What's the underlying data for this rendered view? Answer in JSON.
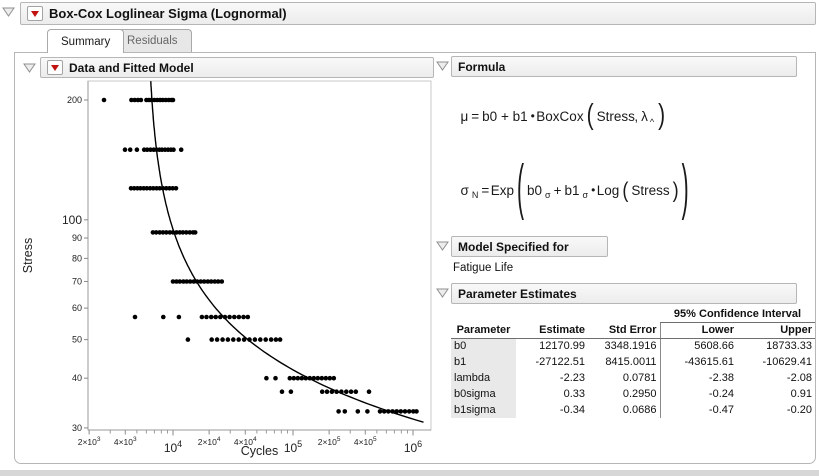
{
  "colors": {
    "accent_red": "#c2120f",
    "header_border": "#b6b6b6",
    "plot_frame": "#c8c8c8",
    "axis_line": "#9a9a9a",
    "point_color": "#000000",
    "bottom_strip": "#d7d7d7"
  },
  "title": "Box-Cox Loglinear Sigma (Lognormal)",
  "tabs": [
    {
      "label": "Summary",
      "active": true
    },
    {
      "label": "Residuals",
      "active": false
    }
  ],
  "plot_section": {
    "title": "Data and Fitted Model"
  },
  "formula_section": {
    "title": "Formula",
    "mu": {
      "lhs": "μ",
      "eq": "=",
      "terms": "b0 + b1",
      "dot": "•",
      "fn": "BoxCox",
      "lp": "(",
      "arg": "Stress",
      "comma": ",",
      "lambda": "λ",
      "hat": "^",
      "rp": ")"
    },
    "sigma": {
      "lhs": "σ",
      "lhs_sub": "N",
      "eq": "=",
      "fn": "Exp",
      "lp_outer": "(",
      "t1": "b0",
      "t1_sub": "σ",
      "plus": "+",
      "t2": "b1",
      "t2_sub": "σ",
      "dot": "•",
      "fn2": "Log",
      "lp_inner": "(",
      "arg": "Stress",
      "rp_inner": ")",
      "rp_outer": ")"
    }
  },
  "model_section": {
    "title": "Model Specified for",
    "value": "Fatigue Life"
  },
  "estimates_section": {
    "title": "Parameter Estimates",
    "ci_header": "95% Confidence Interval",
    "columns": [
      "Parameter",
      "Estimate",
      "Std Error",
      "Lower",
      "Upper"
    ],
    "rows": [
      [
        "b0",
        "12170.99",
        "3348.1916",
        "5608.66",
        "18733.33"
      ],
      [
        "b1",
        "-27122.51",
        "8415.0011",
        "-43615.61",
        "-10629.41"
      ],
      [
        "lambda",
        "-2.23",
        "0.0781",
        "-2.38",
        "-2.08"
      ],
      [
        "b0sigma",
        "0.33",
        "0.2950",
        "-0.24",
        "0.91"
      ],
      [
        "b1sigma",
        "-0.34",
        "0.0686",
        "-0.47",
        "-0.20"
      ]
    ]
  },
  "chart_data": {
    "type": "scatter",
    "title": "Data and Fitted Model",
    "xlabel": "Cycles",
    "ylabel": "Stress",
    "x_scale": "log",
    "y_scale": "log",
    "x_range": [
      1960,
      1410000
    ],
    "y_range": [
      29.6,
      224
    ],
    "grid": false,
    "x_ticks_labeled": [
      2000,
      4000,
      10000,
      20000,
      40000,
      100000,
      200000,
      400000,
      1000000
    ],
    "x_minor_mantissas": [
      3,
      5,
      6,
      7,
      8,
      9
    ],
    "y_ticks_labeled": [
      200,
      100,
      90,
      80,
      70,
      60,
      50,
      40,
      30
    ],
    "series": [
      {
        "stress": 200,
        "cycles": [
          2660,
          4500,
          4800,
          5100,
          5400,
          6000,
          6300,
          6600,
          7000,
          7400,
          7800,
          8200,
          8700,
          9200,
          9700,
          10000
        ]
      },
      {
        "stress": 150,
        "cycles": [
          3980,
          4400,
          5000,
          5750,
          6100,
          6500,
          6900,
          7300,
          7700,
          8100,
          8600,
          9100,
          9600,
          10100,
          11700
        ]
      },
      {
        "stress": 120,
        "cycles": [
          4470,
          4750,
          5050,
          5350,
          5700,
          6050,
          6450,
          6850,
          7300,
          7750,
          8250,
          8800,
          9350,
          9950,
          10600
        ]
      },
      {
        "stress": 93,
        "cycles": [
          6800,
          7250,
          7750,
          8250,
          8800,
          9400,
          10000,
          10700,
          11400,
          12100,
          12900,
          13800,
          14700,
          15300
        ]
      },
      {
        "stress": 70,
        "cycles": [
          10000,
          10700,
          11400,
          12200,
          13000,
          13900,
          14900,
          15900,
          17000,
          18200,
          19500,
          20800,
          22300,
          23800,
          25500
        ]
      },
      {
        "stress": 57,
        "cycles": [
          4820,
          8300,
          11200,
          17400,
          19000,
          20800,
          22700,
          24800,
          27100,
          29600,
          32400,
          35400,
          38700,
          42000
        ]
      },
      {
        "stress": 50,
        "cycles": [
          13300,
          21000,
          23300,
          25900,
          28700,
          31800,
          35300,
          39100,
          43400,
          48100,
          53400,
          59200,
          65700,
          72000,
          78000
        ]
      },
      {
        "stress": 40,
        "cycles": [
          60000,
          71500,
          94000,
          101500,
          109600,
          118400,
          127800,
          138000,
          149000,
          160900,
          173800,
          187700,
          202700,
          218900
        ]
      },
      {
        "stress": 37,
        "cycles": [
          81000,
          96000,
          175000,
          192000,
          211000,
          231000,
          253000,
          278000,
          305000,
          334000,
          430000
        ]
      },
      {
        "stress": 33,
        "cycles": [
          240000,
          270000,
          347000,
          417000,
          531000,
          575000,
          623000,
          675000,
          731000,
          792000,
          858000,
          929000,
          1006000,
          1070000
        ]
      }
    ],
    "fit_curve": {
      "model": "lnN = a + b*stress^c",
      "a": 8.7,
      "b": 7204,
      "c": -2.1,
      "s_max": 223,
      "s_min": 31
    }
  }
}
